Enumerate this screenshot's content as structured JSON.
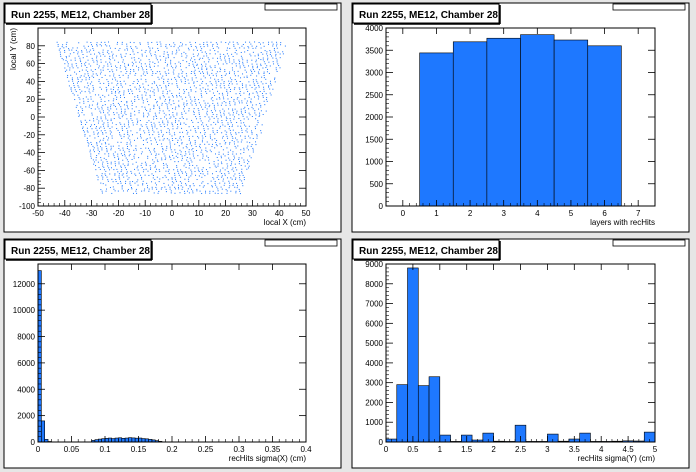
{
  "chart_data": [
    {
      "type": "scatter",
      "title": "Run 2255, ME12, Chamber 28",
      "xlabel": "local X (cm)",
      "ylabel": "local Y (cm)",
      "xlim": [
        -50,
        50
      ],
      "ylim": [
        -100,
        100
      ],
      "xticks": [
        -50,
        -40,
        -30,
        -20,
        -10,
        0,
        10,
        20,
        30,
        40,
        50
      ],
      "yticks": [
        -100,
        -80,
        -60,
        -40,
        -20,
        0,
        20,
        40,
        60,
        80
      ],
      "region": {
        "y_bottom": -85,
        "y_top": 85,
        "x_half_bottom": 26,
        "x_half_top": 43
      },
      "grid": false
    },
    {
      "type": "bar",
      "title": "Run 2255, ME12, Chamber 28",
      "xlabel": "layers with recHits",
      "ylabel": "",
      "xlim": [
        -0.5,
        7.5
      ],
      "ylim": [
        0,
        4000
      ],
      "xticks": [
        0,
        1,
        2,
        3,
        4,
        5,
        6,
        7
      ],
      "yticks": [
        0,
        500,
        1000,
        1500,
        2000,
        2500,
        3000,
        3500,
        4000
      ],
      "bin_width": 1,
      "bins": [
        {
          "x": 1,
          "y": 3440
        },
        {
          "x": 2,
          "y": 3690
        },
        {
          "x": 3,
          "y": 3770
        },
        {
          "x": 4,
          "y": 3850
        },
        {
          "x": 5,
          "y": 3730
        },
        {
          "x": 6,
          "y": 3600
        }
      ]
    },
    {
      "type": "bar",
      "title": "Run 2255, ME12, Chamber 28",
      "xlabel": "recHits sigma(X) (cm)",
      "ylabel": "",
      "xlim": [
        0,
        0.4
      ],
      "ylim": [
        0,
        13500
      ],
      "xticks": [
        0,
        0.05,
        0.1,
        0.15,
        0.2,
        0.25,
        0.3,
        0.35,
        0.4
      ],
      "yticks": [
        0,
        2000,
        4000,
        6000,
        8000,
        10000,
        12000
      ],
      "bin_width": 0.005,
      "bins": [
        {
          "x": 0.0025,
          "y": 13000
        },
        {
          "x": 0.0075,
          "y": 1600
        },
        {
          "x": 0.0125,
          "y": 200
        },
        {
          "x": 0.0175,
          "y": 40
        },
        {
          "x": 0.0825,
          "y": 120
        },
        {
          "x": 0.0875,
          "y": 180
        },
        {
          "x": 0.0925,
          "y": 220
        },
        {
          "x": 0.0975,
          "y": 250
        },
        {
          "x": 0.1025,
          "y": 280
        },
        {
          "x": 0.1075,
          "y": 300
        },
        {
          "x": 0.1125,
          "y": 260
        },
        {
          "x": 0.1175,
          "y": 300
        },
        {
          "x": 0.1225,
          "y": 320
        },
        {
          "x": 0.1275,
          "y": 280
        },
        {
          "x": 0.1325,
          "y": 300
        },
        {
          "x": 0.1375,
          "y": 330
        },
        {
          "x": 0.1425,
          "y": 310
        },
        {
          "x": 0.1475,
          "y": 290
        },
        {
          "x": 0.1525,
          "y": 300
        },
        {
          "x": 0.1575,
          "y": 260
        },
        {
          "x": 0.1625,
          "y": 240
        },
        {
          "x": 0.1675,
          "y": 200
        },
        {
          "x": 0.1725,
          "y": 160
        },
        {
          "x": 0.1775,
          "y": 100
        },
        {
          "x": 0.1825,
          "y": 50
        }
      ]
    },
    {
      "type": "bar",
      "title": "Run 2255, ME12, Chamber 28",
      "xlabel": "recHits sigma(Y) (cm)",
      "ylabel": "",
      "xlim": [
        0,
        5
      ],
      "ylim": [
        0,
        9000
      ],
      "xticks": [
        0,
        0.5,
        1,
        1.5,
        2,
        2.5,
        3,
        3.5,
        4,
        4.5,
        5
      ],
      "xtick_labels": [
        "0",
        "0.5",
        "1",
        "1.5",
        "2",
        "2.5",
        "3",
        "3.5",
        "4",
        "4.5",
        "5"
      ],
      "yticks": [
        0,
        1000,
        2000,
        3000,
        4000,
        5000,
        6000,
        7000,
        8000,
        9000
      ],
      "bin_width": 0.2,
      "bins": [
        {
          "x": 0.1,
          "y": 150
        },
        {
          "x": 0.3,
          "y": 2900
        },
        {
          "x": 0.5,
          "y": 8800
        },
        {
          "x": 0.7,
          "y": 2850
        },
        {
          "x": 0.9,
          "y": 3300
        },
        {
          "x": 1.1,
          "y": 350
        },
        {
          "x": 1.3,
          "y": 30
        },
        {
          "x": 1.5,
          "y": 350
        },
        {
          "x": 1.7,
          "y": 100
        },
        {
          "x": 1.9,
          "y": 450
        },
        {
          "x": 2.1,
          "y": 40
        },
        {
          "x": 2.3,
          "y": 30
        },
        {
          "x": 2.5,
          "y": 850
        },
        {
          "x": 2.7,
          "y": 30
        },
        {
          "x": 2.9,
          "y": 30
        },
        {
          "x": 3.1,
          "y": 400
        },
        {
          "x": 3.3,
          "y": 40
        },
        {
          "x": 3.5,
          "y": 150
        },
        {
          "x": 3.7,
          "y": 450
        },
        {
          "x": 3.9,
          "y": 30
        },
        {
          "x": 4.1,
          "y": 30
        },
        {
          "x": 4.3,
          "y": 40
        },
        {
          "x": 4.5,
          "y": 60
        },
        {
          "x": 4.7,
          "y": 50
        },
        {
          "x": 4.9,
          "y": 500
        }
      ]
    }
  ],
  "style": {
    "fill": "#1e78ff",
    "frame": "#000000",
    "pad_bg": "#ffffff",
    "canvas_bg": "#e6e6e6"
  }
}
